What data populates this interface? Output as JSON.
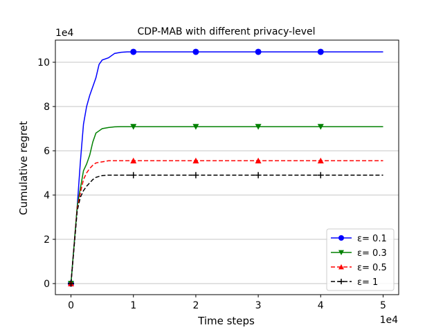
{
  "chart_data": {
    "type": "line",
    "title": "CDP-MAB with different privacy-level",
    "xlabel": "Time steps",
    "ylabel": "Cumulative regret",
    "x_multiplier": "1e4",
    "y_multiplier": "1e4",
    "xlim": [
      -0.25,
      5.25
    ],
    "ylim": [
      -0.5,
      11.0
    ],
    "xticks": [
      0,
      1,
      2,
      3,
      4,
      5
    ],
    "yticks": [
      0,
      2,
      4,
      6,
      8,
      10
    ],
    "grid": "horizontal",
    "legend_position": "lower right",
    "series": [
      {
        "name": "ε= 0.1",
        "color": "#0000ff",
        "linestyle": "solid",
        "marker": "circle",
        "x": [
          0,
          0.1,
          0.15,
          0.2,
          0.25,
          0.3,
          0.35,
          0.4,
          0.45,
          0.5,
          0.6,
          0.7,
          0.8,
          0.9,
          1.0,
          2,
          3,
          4,
          5
        ],
        "y": [
          0,
          3.5,
          5.5,
          7.2,
          8.0,
          8.5,
          8.9,
          9.3,
          9.9,
          10.1,
          10.2,
          10.4,
          10.45,
          10.47,
          10.47,
          10.47,
          10.47,
          10.47,
          10.47
        ],
        "marker_x": [
          0,
          1,
          2,
          3,
          4
        ]
      },
      {
        "name": "ε= 0.3",
        "color": "#008000",
        "linestyle": "solid",
        "marker": "triangle-down",
        "x": [
          0,
          0.1,
          0.15,
          0.2,
          0.25,
          0.3,
          0.35,
          0.4,
          0.45,
          0.5,
          0.6,
          0.7,
          0.8,
          1.0,
          2,
          3,
          4,
          5
        ],
        "y": [
          0,
          3.5,
          4.3,
          5.1,
          5.4,
          5.8,
          6.4,
          6.8,
          6.9,
          7.0,
          7.05,
          7.08,
          7.09,
          7.09,
          7.09,
          7.09,
          7.09,
          7.09
        ],
        "marker_x": [
          0,
          1,
          2,
          3,
          4
        ]
      },
      {
        "name": "ε= 0.5",
        "color": "#ff0000",
        "linestyle": "dashed",
        "marker": "triangle-up",
        "x": [
          0,
          0.1,
          0.15,
          0.2,
          0.25,
          0.3,
          0.35,
          0.4,
          0.5,
          0.6,
          0.8,
          1.0,
          2,
          3,
          4,
          5
        ],
        "y": [
          0,
          3.4,
          4.1,
          4.7,
          5.0,
          5.2,
          5.35,
          5.45,
          5.5,
          5.55,
          5.55,
          5.55,
          5.55,
          5.55,
          5.55,
          5.55
        ],
        "marker_x": [
          0,
          1,
          2,
          3,
          4
        ]
      },
      {
        "name": "ε= 1",
        "color": "#000000",
        "linestyle": "dashed",
        "marker": "plus",
        "x": [
          0,
          0.1,
          0.15,
          0.2,
          0.25,
          0.3,
          0.35,
          0.4,
          0.5,
          0.6,
          0.8,
          1.0,
          2,
          3,
          4,
          5
        ],
        "y": [
          0,
          3.3,
          3.9,
          4.2,
          4.4,
          4.55,
          4.7,
          4.8,
          4.88,
          4.9,
          4.9,
          4.9,
          4.9,
          4.9,
          4.9,
          4.9
        ],
        "marker_x": [
          0,
          1,
          2,
          3,
          4
        ]
      }
    ]
  }
}
